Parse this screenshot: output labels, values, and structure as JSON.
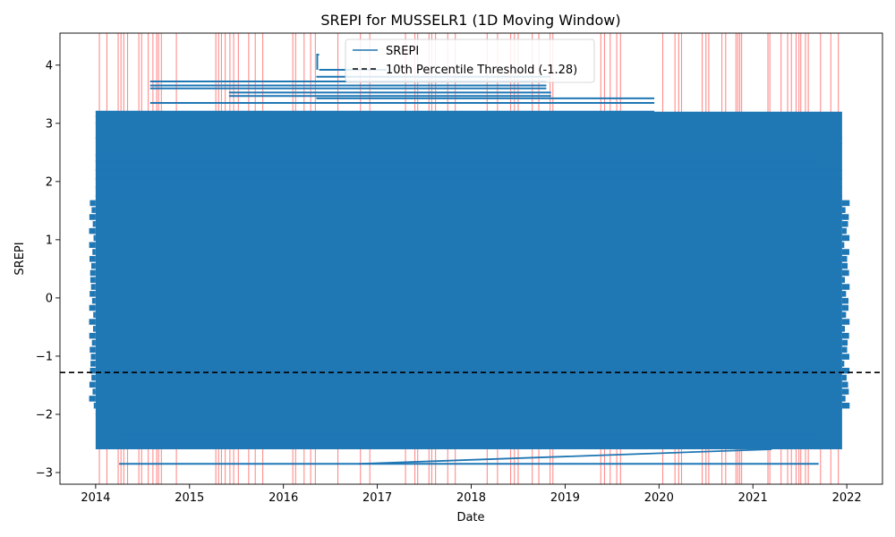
{
  "chart_data": {
    "type": "line",
    "title": "SREPI for MUSSELR1 (1D Moving Window)",
    "xlabel": "Date",
    "ylabel": "SREPI",
    "xlim": [
      2013.62,
      2022.38
    ],
    "ylim": [
      -3.2,
      4.55
    ],
    "x_ticks": [
      2014,
      2015,
      2016,
      2017,
      2018,
      2019,
      2020,
      2021,
      2022
    ],
    "x_tick_labels": [
      "2014",
      "2015",
      "2016",
      "2017",
      "2018",
      "2019",
      "2020",
      "2021",
      "2022"
    ],
    "y_ticks": [
      -3,
      -2,
      -1,
      0,
      1,
      2,
      3,
      4
    ],
    "y_tick_labels": [
      "−3",
      "−2",
      "−1",
      "0",
      "1",
      "2",
      "3",
      "4"
    ],
    "grid": false,
    "legend_position": "top-center",
    "series": [
      {
        "name": "SREPI",
        "color": "#1f77b4",
        "dense_band": {
          "x_range": [
            2014.0,
            2021.95
          ],
          "y_range": [
            -2.6,
            3.2
          ]
        },
        "flat_segments": [
          {
            "y": 4.18,
            "x": [
              2016.35,
              2016.38
            ]
          },
          {
            "y": 3.92,
            "x": [
              2016.38,
              2017.1
            ]
          },
          {
            "y": 3.8,
            "x": [
              2016.35,
              2018.85
            ]
          },
          {
            "y": 3.72,
            "x": [
              2014.58,
              2018.8
            ]
          },
          {
            "y": 3.65,
            "x": [
              2014.58,
              2018.8
            ]
          },
          {
            "y": 3.6,
            "x": [
              2014.58,
              2018.8
            ]
          },
          {
            "y": 3.53,
            "x": [
              2015.42,
              2018.85
            ]
          },
          {
            "y": 3.47,
            "x": [
              2015.42,
              2018.85
            ]
          },
          {
            "y": 3.43,
            "x": [
              2016.35,
              2019.95
            ]
          },
          {
            "y": 3.35,
            "x": [
              2014.58,
              2019.95
            ]
          },
          {
            "y": 3.2,
            "x": [
              2014.0,
              2019.95
            ]
          },
          {
            "y": 3.12,
            "x": [
              2014.0,
              2021.65
            ]
          },
          {
            "y": 3.0,
            "x": [
              2014.0,
              2021.65
            ]
          },
          {
            "y": 2.85,
            "x": [
              2014.95,
              2021.65
            ]
          },
          {
            "y": 2.75,
            "x": [
              2014.0,
              2021.95
            ]
          },
          {
            "y": 2.65,
            "x": [
              2014.48,
              2021.95
            ]
          },
          {
            "y": 2.55,
            "x": [
              2014.48,
              2021.7
            ]
          },
          {
            "y": 2.45,
            "x": [
              2014.0,
              2021.7
            ]
          },
          {
            "y": 2.35,
            "x": [
              2014.0,
              2021.7
            ]
          },
          {
            "y": 2.2,
            "x": [
              2014.0,
              2021.95
            ]
          },
          {
            "y": 2.05,
            "x": [
              2014.0,
              2021.95
            ]
          },
          {
            "y": 1.9,
            "x": [
              2014.0,
              2021.95
            ]
          },
          {
            "y": 1.75,
            "x": [
              2014.0,
              2021.95
            ]
          },
          {
            "y": 1.55,
            "x": [
              2014.0,
              2021.95
            ]
          },
          {
            "y": 1.4,
            "x": [
              2014.0,
              2021.95
            ]
          },
          {
            "y": -1.85,
            "x": [
              2014.0,
              2021.9
            ]
          },
          {
            "y": -2.0,
            "x": [
              2014.0,
              2021.9
            ]
          },
          {
            "y": -2.1,
            "x": [
              2014.25,
              2021.85
            ]
          },
          {
            "y": -2.25,
            "x": [
              2014.25,
              2021.7
            ]
          },
          {
            "y": -2.35,
            "x": [
              2014.25,
              2021.7
            ]
          },
          {
            "y": -2.45,
            "x": [
              2014.25,
              2021.7
            ]
          },
          {
            "y": -2.55,
            "x": [
              2014.25,
              2021.55
            ]
          },
          {
            "y": -2.85,
            "x": [
              2014.25,
              2021.7
            ]
          }
        ],
        "diagonal_segment": {
          "x": [
            2016.8,
            2021.2
          ],
          "y": [
            -2.85,
            -2.6
          ]
        }
      },
      {
        "name": "10th Percentile Threshold (-1.28)",
        "color": "#000000",
        "style": "dashed",
        "y": -1.28
      }
    ],
    "event_markers": {
      "color": "#ff0000",
      "opacity": 0.45,
      "x": [
        2014.04,
        2014.12,
        2014.24,
        2014.27,
        2014.3,
        2014.34,
        2014.46,
        2014.49,
        2014.56,
        2014.61,
        2014.65,
        2014.67,
        2014.7,
        2014.86,
        2015.28,
        2015.31,
        2015.34,
        2015.38,
        2015.43,
        2015.47,
        2015.52,
        2015.63,
        2015.7,
        2015.78,
        2016.1,
        2016.13,
        2016.22,
        2016.29,
        2016.34,
        2016.58,
        2016.82,
        2016.92,
        2017.3,
        2017.4,
        2017.43,
        2017.55,
        2017.58,
        2017.62,
        2017.75,
        2017.83,
        2018.17,
        2018.28,
        2018.42,
        2018.46,
        2018.5,
        2018.65,
        2018.72,
        2018.84,
        2018.87,
        2019.38,
        2019.42,
        2019.48,
        2019.55,
        2019.59,
        2020.04,
        2020.17,
        2020.21,
        2020.24,
        2020.46,
        2020.5,
        2020.53,
        2020.67,
        2020.71,
        2020.82,
        2020.84,
        2020.86,
        2020.88,
        2021.16,
        2021.18,
        2021.3,
        2021.37,
        2021.41,
        2021.46,
        2021.49,
        2021.51,
        2021.56,
        2021.59,
        2021.72,
        2021.83,
        2021.91
      ]
    },
    "legend": [
      "SREPI",
      "10th Percentile Threshold (-1.28)"
    ]
  }
}
